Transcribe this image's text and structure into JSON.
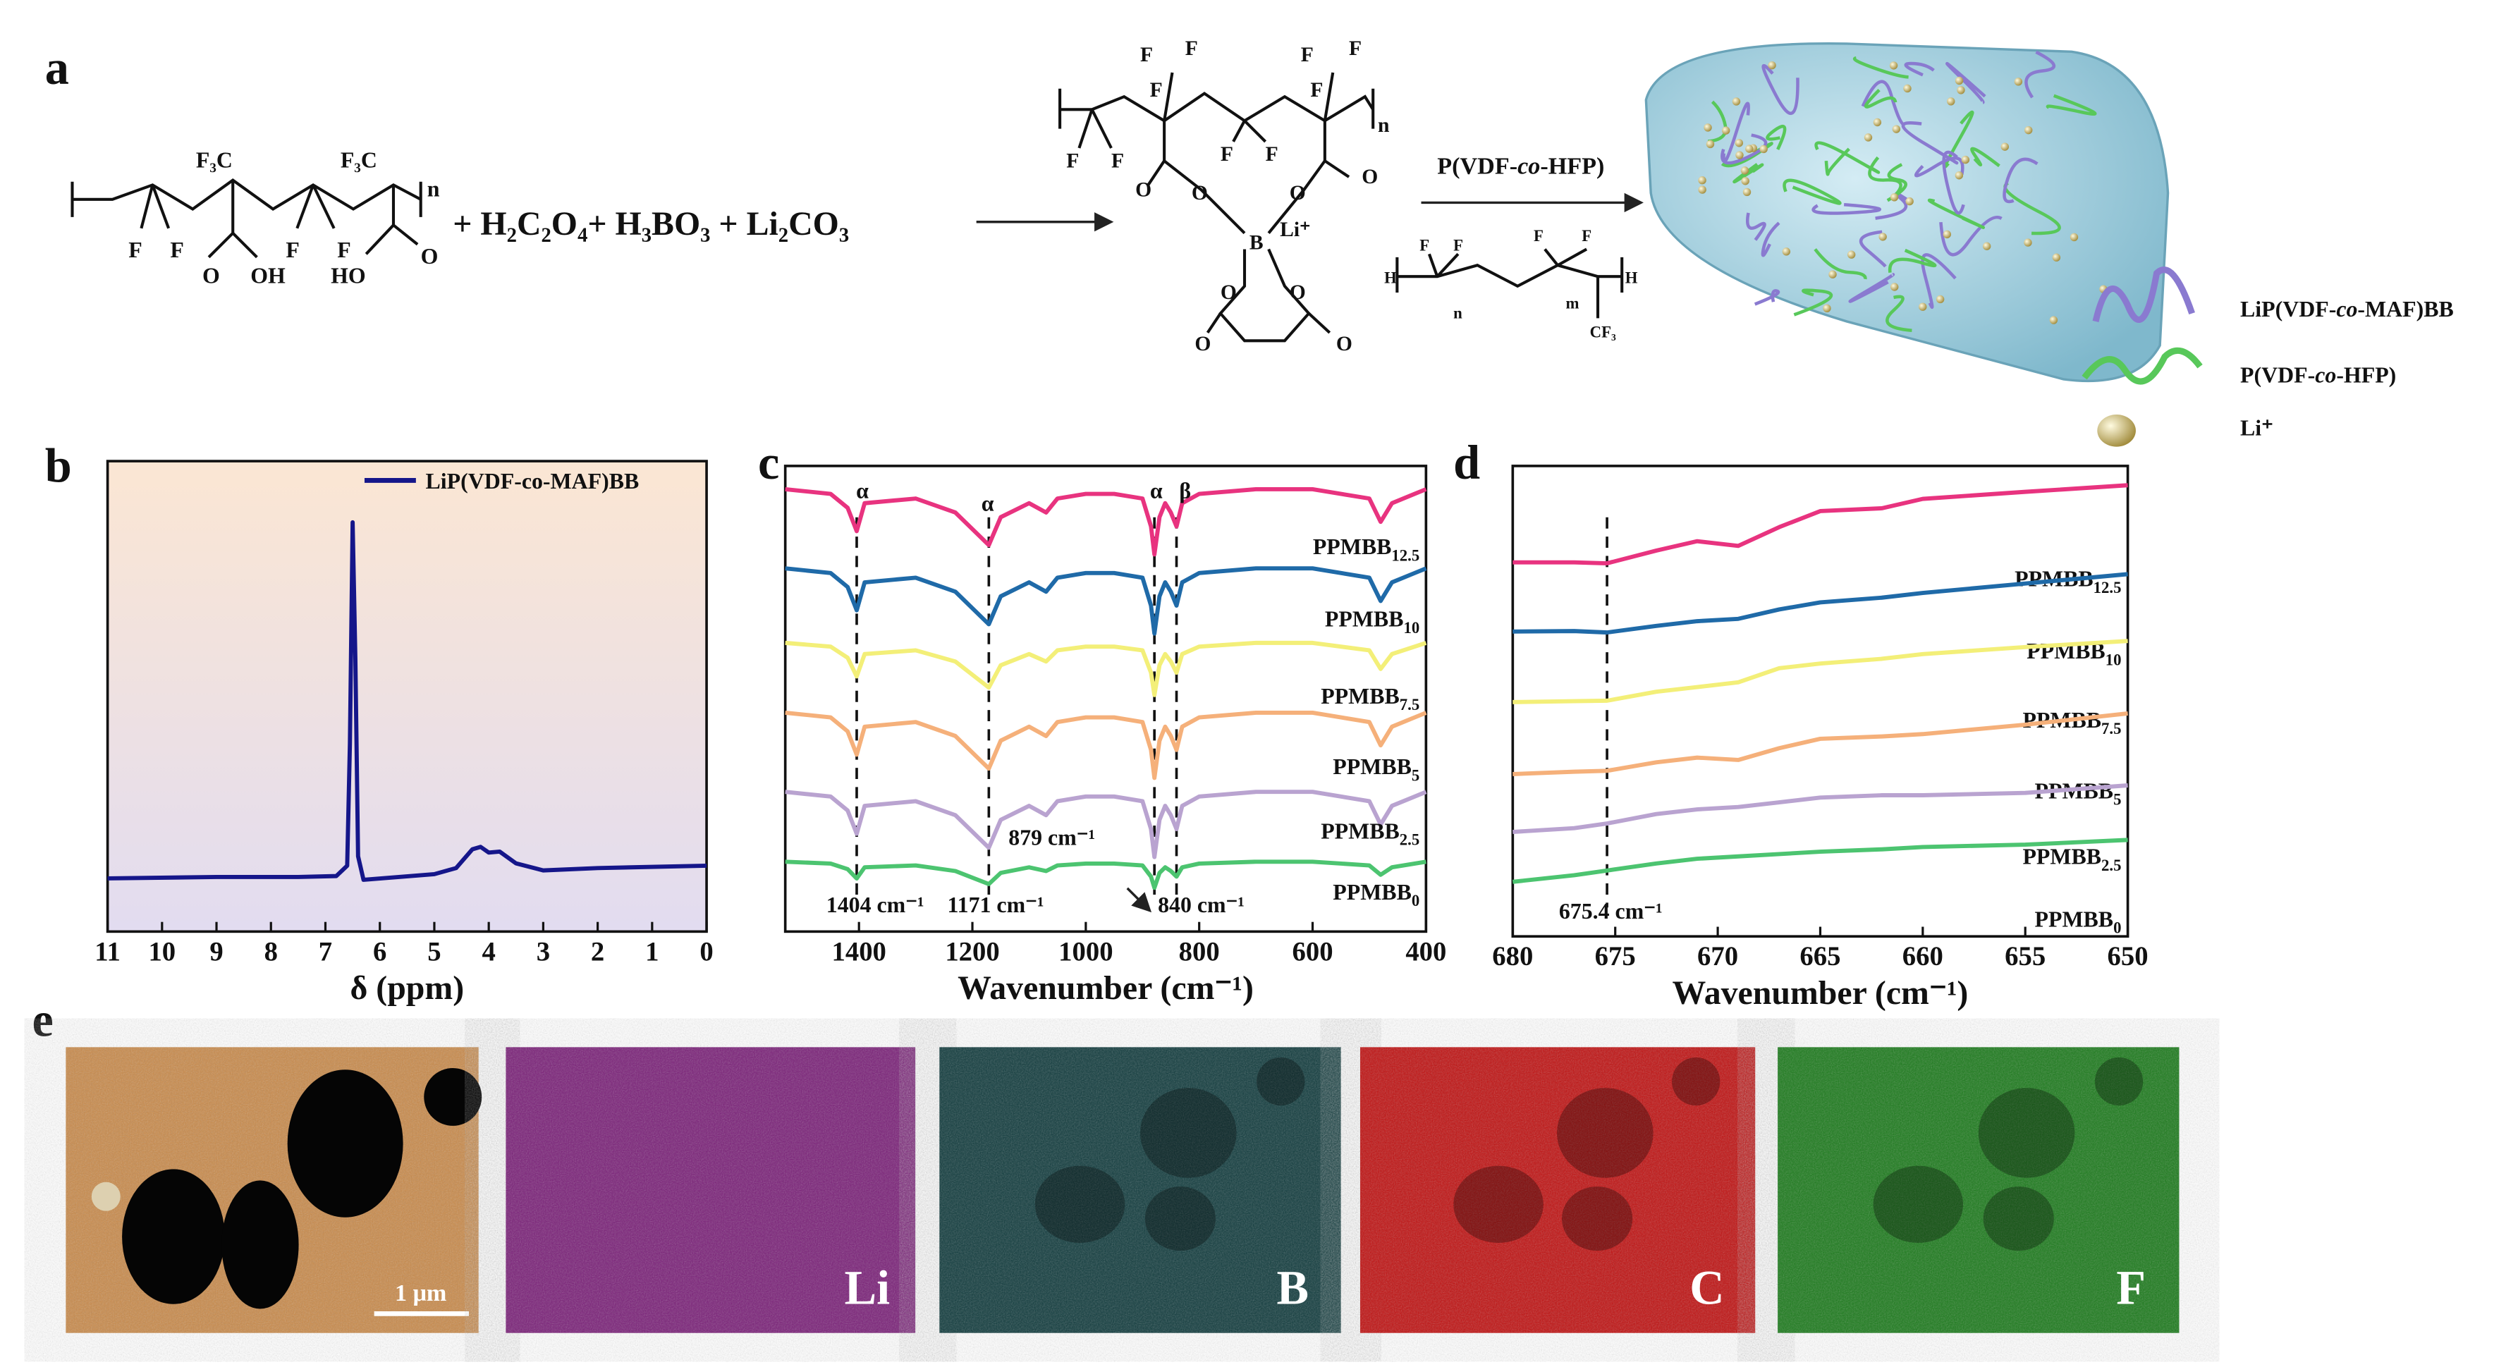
{
  "panel_a": {
    "label": "a",
    "monomer_atoms": [
      "F₃C",
      "F₃C",
      "F",
      "F",
      "F",
      "F",
      "O",
      "OH",
      "HO",
      "O",
      "n"
    ],
    "reagents": "+ H₂C₂O₄+ H₃BO₃ +  Li₂CO₃",
    "product_atoms": [
      "F",
      "F",
      "F",
      "F",
      "F",
      "F",
      "F",
      "F",
      "F",
      "F",
      "n",
      "O",
      "O",
      "O",
      "O",
      "B",
      "Li⁺",
      "O",
      "O",
      "O",
      "O"
    ],
    "arrow_label": [
      "P(VDF-",
      "co",
      "-HFP)"
    ],
    "hfp_atoms": [
      "H",
      "F",
      "F",
      "n",
      "F",
      "F",
      "m",
      "H",
      "CF₃"
    ],
    "legend": [
      [
        "LiP(VDF-",
        "co",
        "-MAF)BB"
      ],
      [
        "P(VDF-",
        "co",
        "-HFP)"
      ],
      [
        "Li⁺"
      ]
    ]
  },
  "chart_data": [
    {
      "type": "line",
      "panel": "b",
      "xlabel": "δ (ppm)",
      "xlim": [
        11,
        0
      ],
      "xticks": [
        11,
        10,
        9,
        8,
        7,
        6,
        5,
        4,
        3,
        2,
        1,
        0
      ],
      "ylim": [
        0,
        100
      ],
      "x": [
        11,
        9,
        7.5,
        6.8,
        6.6,
        6.55,
        6.5,
        6.45,
        6.4,
        6.3,
        5,
        4.6,
        4.3,
        4.15,
        4.0,
        3.8,
        3.5,
        3,
        2,
        0
      ],
      "series": [
        {
          "name": "LiP(VDF-co-MAF)BB",
          "color": "#15168a",
          "values": [
            11.3,
            11.6,
            11.6,
            11.8,
            14,
            40,
            87,
            58,
            16,
            11,
            12.2,
            13.5,
            17.5,
            18,
            16.8,
            17,
            14.5,
            13,
            13.5,
            14
          ]
        }
      ],
      "legend": "upper right"
    },
    {
      "type": "line",
      "panel": "c",
      "xlabel": "Wavenumber (cm⁻¹)",
      "xlim": [
        1530,
        400
      ],
      "xticks": [
        1400,
        1200,
        1000,
        800,
        600,
        400
      ],
      "ylim": [
        0,
        100
      ],
      "x": [
        1530,
        1450,
        1420,
        1404,
        1390,
        1300,
        1230,
        1171,
        1150,
        1100,
        1070,
        1050,
        1000,
        950,
        900,
        885,
        879,
        870,
        860,
        850,
        840,
        830,
        800,
        700,
        600,
        500,
        480,
        460,
        420,
        400
      ],
      "series": [
        {
          "name": "PPMBB",
          "name_sub": "12.5",
          "color": "#e8337f",
          "values": [
            95,
            94,
            91,
            86,
            92,
            93,
            90,
            83,
            89,
            92,
            90,
            93,
            94,
            94,
            93,
            87,
            81,
            89,
            92,
            90,
            87,
            92,
            94,
            95,
            95,
            93,
            88,
            92,
            94,
            95
          ]
        },
        {
          "name": "PPMBB",
          "name_sub": "10",
          "color": "#1f6aa8",
          "values": [
            78,
            77,
            74,
            69,
            75,
            76,
            73,
            66,
            72,
            75,
            73,
            76,
            77,
            77,
            76,
            70,
            64,
            72,
            75,
            73,
            70,
            75,
            77,
            78,
            78,
            76,
            71,
            75,
            77,
            78
          ]
        },
        {
          "name": "PPMBB",
          "name_sub": "7.5",
          "color": "#f3ef78",
          "values": [
            62,
            61.2,
            58.8,
            54.8,
            59.6,
            60.4,
            58,
            52.4,
            57.2,
            59.6,
            58,
            60.4,
            61.2,
            61.2,
            60.4,
            55.6,
            50.8,
            57.2,
            59.6,
            58,
            55.6,
            59.6,
            61.2,
            62,
            62,
            60.4,
            56.4,
            59.6,
            61.2,
            62
          ]
        },
        {
          "name": "PPMBB",
          "name_sub": "5",
          "color": "#f5b07a",
          "values": [
            47,
            46,
            43,
            38,
            44,
            45,
            42,
            35,
            41,
            44,
            42,
            45,
            46,
            46,
            45,
            39,
            33,
            41,
            44,
            42,
            39,
            44,
            46,
            47,
            47,
            45,
            40,
            44,
            46,
            47
          ]
        },
        {
          "name": "PPMBB",
          "name_sub": "2.5",
          "color": "#b9a3d0",
          "values": [
            30,
            29,
            26,
            21,
            27,
            28,
            25,
            18,
            24,
            27,
            25,
            28,
            29,
            29,
            28,
            22,
            16,
            24,
            27,
            25,
            22,
            27,
            29,
            30,
            30,
            28,
            23,
            27,
            29,
            30
          ]
        },
        {
          "name": "PPMBB",
          "name_sub": "0",
          "color": "#4cc470",
          "values": [
            15,
            14.6,
            13.4,
            11.4,
            13.8,
            14.2,
            13,
            10.2,
            12.6,
            13.8,
            13,
            14.2,
            14.6,
            14.6,
            14.2,
            11.8,
            9.4,
            12.6,
            13.8,
            13,
            11.8,
            13.8,
            14.6,
            15,
            15,
            14.2,
            12.2,
            13.8,
            14.6,
            15
          ]
        }
      ],
      "markers": [
        1404,
        1171,
        879,
        840
      ],
      "annotations": [
        "α",
        "α",
        "α",
        "β",
        "1404 cm⁻¹",
        "1171 cm⁻¹",
        "879 cm⁻¹",
        "840 cm⁻¹"
      ]
    },
    {
      "type": "line",
      "panel": "d",
      "xlabel": "Wavenumber (cm⁻¹)",
      "xlim": [
        680,
        650
      ],
      "xticks": [
        680,
        675,
        670,
        665,
        660,
        655,
        650
      ],
      "ylim": [
        0,
        100
      ],
      "x": [
        680,
        677,
        675.4,
        673,
        671,
        669,
        667,
        665,
        662,
        660,
        655,
        650
      ],
      "series": [
        {
          "name": "PPMBB",
          "name_sub": "12.5",
          "color": "#e8337f",
          "values": [
            79.5,
            79.5,
            79.3,
            82,
            84,
            83,
            87,
            90.4,
            91,
            93,
            94.5,
            95.9
          ]
        },
        {
          "name": "PPMBB",
          "name_sub": "10",
          "color": "#1f6aa8",
          "values": [
            64.8,
            64.9,
            64.6,
            66,
            67,
            67.5,
            69.5,
            71,
            72,
            73,
            75,
            77
          ]
        },
        {
          "name": "PPMBB",
          "name_sub": "7.5",
          "color": "#f3ef78",
          "values": [
            49.8,
            50,
            50.1,
            52,
            53,
            54,
            57,
            58,
            59,
            60,
            61.5,
            62.8
          ]
        },
        {
          "name": "PPMBB",
          "name_sub": "5",
          "color": "#f5b07a",
          "values": [
            34.5,
            35,
            35.2,
            37,
            38,
            37.5,
            40,
            42,
            42.5,
            43,
            45,
            47.4
          ]
        },
        {
          "name": "PPMBB",
          "name_sub": "2.5",
          "color": "#b9a3d0",
          "values": [
            22.2,
            23,
            24,
            26,
            27,
            27.5,
            28.5,
            29.5,
            30,
            30,
            30.5,
            32.1
          ]
        },
        {
          "name": "PPMBB",
          "name_sub": "0",
          "color": "#4cc470",
          "values": [
            11.6,
            13,
            14,
            15.5,
            16.5,
            17,
            17.5,
            18,
            18.5,
            19,
            19.5,
            20.5
          ]
        }
      ],
      "markers": [
        675.4
      ],
      "annotations": [
        "675.4 cm⁻¹"
      ]
    }
  ],
  "panel_e": {
    "label": "e",
    "images": [
      "1 μm",
      "Li",
      "B",
      "C",
      "F"
    ]
  }
}
